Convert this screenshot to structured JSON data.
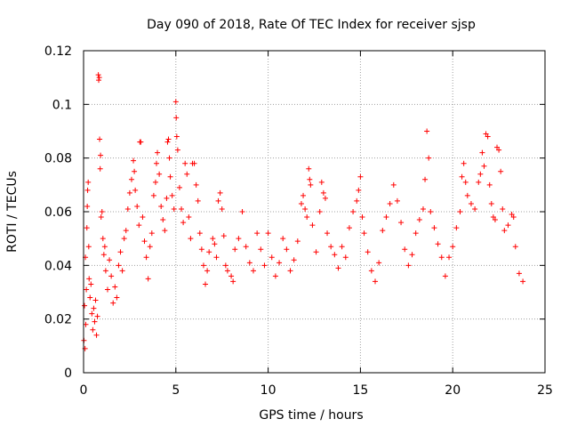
{
  "chart_data": {
    "type": "scatter",
    "title": "Day 090 of 2018, Rate Of TEC Index for receiver sjsp",
    "xlabel": "GPS time / hours",
    "ylabel": "ROTI / TECUs",
    "xlim": [
      0,
      25
    ],
    "ylim": [
      0,
      0.12
    ],
    "x_ticks": [
      0,
      5,
      10,
      15,
      20,
      25
    ],
    "x_tick_labels": [
      "0",
      "5",
      "10",
      "15",
      "20",
      "25"
    ],
    "y_ticks": [
      0,
      0.02,
      0.04,
      0.06,
      0.08,
      0.1,
      0.12
    ],
    "y_tick_labels": [
      "0",
      "0.02",
      "0.04",
      "0.06",
      "0.08",
      "0.1",
      "0.12"
    ],
    "grid": true,
    "marker": "plus",
    "marker_color": "#ff0000",
    "series": [
      {
        "name": "ROTI",
        "points": [
          [
            0.02,
            0.012
          ],
          [
            0.05,
            0.025
          ],
          [
            0.08,
            0.009
          ],
          [
            0.1,
            0.043
          ],
          [
            0.12,
            0.018
          ],
          [
            0.15,
            0.031
          ],
          [
            0.18,
            0.054
          ],
          [
            0.2,
            0.062
          ],
          [
            0.22,
            0.068
          ],
          [
            0.25,
            0.071
          ],
          [
            0.28,
            0.047
          ],
          [
            0.3,
            0.035
          ],
          [
            0.35,
            0.028
          ],
          [
            0.4,
            0.033
          ],
          [
            0.45,
            0.022
          ],
          [
            0.5,
            0.016
          ],
          [
            0.55,
            0.024
          ],
          [
            0.6,
            0.019
          ],
          [
            0.65,
            0.027
          ],
          [
            0.7,
            0.014
          ],
          [
            0.75,
            0.021
          ],
          [
            0.8,
            0.111
          ],
          [
            0.82,
            0.109
          ],
          [
            0.85,
            0.11
          ],
          [
            0.87,
            0.087
          ],
          [
            0.9,
            0.076
          ],
          [
            0.92,
            0.081
          ],
          [
            0.95,
            0.058
          ],
          [
            1.0,
            0.06
          ],
          [
            1.05,
            0.05
          ],
          [
            1.1,
            0.044
          ],
          [
            1.15,
            0.047
          ],
          [
            1.2,
            0.038
          ],
          [
            1.3,
            0.031
          ],
          [
            1.4,
            0.042
          ],
          [
            1.5,
            0.036
          ],
          [
            1.6,
            0.026
          ],
          [
            1.7,
            0.032
          ],
          [
            1.8,
            0.028
          ],
          [
            1.9,
            0.04
          ],
          [
            2.0,
            0.045
          ],
          [
            2.1,
            0.038
          ],
          [
            2.2,
            0.05
          ],
          [
            2.3,
            0.053
          ],
          [
            2.4,
            0.061
          ],
          [
            2.5,
            0.067
          ],
          [
            2.6,
            0.072
          ],
          [
            2.7,
            0.079
          ],
          [
            2.75,
            0.075
          ],
          [
            2.8,
            0.068
          ],
          [
            2.9,
            0.062
          ],
          [
            3.0,
            0.055
          ],
          [
            3.05,
            0.086
          ],
          [
            3.1,
            0.086
          ],
          [
            3.2,
            0.058
          ],
          [
            3.3,
            0.049
          ],
          [
            3.4,
            0.043
          ],
          [
            3.5,
            0.035
          ],
          [
            3.6,
            0.047
          ],
          [
            3.7,
            0.052
          ],
          [
            3.8,
            0.066
          ],
          [
            3.9,
            0.071
          ],
          [
            3.95,
            0.078
          ],
          [
            4.0,
            0.082
          ],
          [
            4.1,
            0.074
          ],
          [
            4.2,
            0.062
          ],
          [
            4.3,
            0.057
          ],
          [
            4.4,
            0.053
          ],
          [
            4.5,
            0.065
          ],
          [
            4.55,
            0.086
          ],
          [
            4.6,
            0.087
          ],
          [
            4.65,
            0.08
          ],
          [
            4.7,
            0.073
          ],
          [
            4.8,
            0.066
          ],
          [
            4.9,
            0.061
          ],
          [
            5.0,
            0.101
          ],
          [
            5.02,
            0.095
          ],
          [
            5.05,
            0.088
          ],
          [
            5.1,
            0.083
          ],
          [
            5.2,
            0.069
          ],
          [
            5.3,
            0.061
          ],
          [
            5.4,
            0.056
          ],
          [
            5.5,
            0.078
          ],
          [
            5.6,
            0.074
          ],
          [
            5.7,
            0.058
          ],
          [
            5.8,
            0.05
          ],
          [
            5.9,
            0.078
          ],
          [
            6.0,
            0.078
          ],
          [
            6.1,
            0.07
          ],
          [
            6.2,
            0.064
          ],
          [
            6.3,
            0.052
          ],
          [
            6.4,
            0.046
          ],
          [
            6.5,
            0.04
          ],
          [
            6.6,
            0.033
          ],
          [
            6.7,
            0.038
          ],
          [
            6.8,
            0.045
          ],
          [
            7.0,
            0.05
          ],
          [
            7.1,
            0.048
          ],
          [
            7.2,
            0.043
          ],
          [
            7.3,
            0.064
          ],
          [
            7.4,
            0.067
          ],
          [
            7.5,
            0.061
          ],
          [
            7.6,
            0.051
          ],
          [
            7.7,
            0.04
          ],
          [
            7.8,
            0.038
          ],
          [
            8.0,
            0.036
          ],
          [
            8.1,
            0.034
          ],
          [
            8.2,
            0.046
          ],
          [
            8.4,
            0.05
          ],
          [
            8.6,
            0.06
          ],
          [
            8.8,
            0.047
          ],
          [
            9.0,
            0.041
          ],
          [
            9.2,
            0.038
          ],
          [
            9.4,
            0.052
          ],
          [
            9.6,
            0.046
          ],
          [
            9.8,
            0.04
          ],
          [
            10.0,
            0.052
          ],
          [
            10.2,
            0.043
          ],
          [
            10.4,
            0.036
          ],
          [
            10.6,
            0.041
          ],
          [
            10.8,
            0.05
          ],
          [
            11.0,
            0.046
          ],
          [
            11.2,
            0.038
          ],
          [
            11.4,
            0.042
          ],
          [
            11.6,
            0.049
          ],
          [
            11.8,
            0.063
          ],
          [
            11.9,
            0.066
          ],
          [
            12.0,
            0.061
          ],
          [
            12.1,
            0.058
          ],
          [
            12.2,
            0.076
          ],
          [
            12.25,
            0.072
          ],
          [
            12.3,
            0.07
          ],
          [
            12.4,
            0.055
          ],
          [
            12.6,
            0.045
          ],
          [
            12.8,
            0.06
          ],
          [
            12.9,
            0.071
          ],
          [
            13.0,
            0.067
          ],
          [
            13.1,
            0.065
          ],
          [
            13.2,
            0.052
          ],
          [
            13.4,
            0.047
          ],
          [
            13.6,
            0.044
          ],
          [
            13.8,
            0.039
          ],
          [
            14.0,
            0.047
          ],
          [
            14.2,
            0.043
          ],
          [
            14.4,
            0.054
          ],
          [
            14.6,
            0.06
          ],
          [
            14.8,
            0.064
          ],
          [
            14.9,
            0.068
          ],
          [
            15.0,
            0.073
          ],
          [
            15.1,
            0.058
          ],
          [
            15.2,
            0.052
          ],
          [
            15.4,
            0.045
          ],
          [
            15.6,
            0.038
          ],
          [
            15.8,
            0.034
          ],
          [
            16.0,
            0.041
          ],
          [
            16.2,
            0.053
          ],
          [
            16.4,
            0.058
          ],
          [
            16.6,
            0.063
          ],
          [
            16.8,
            0.07
          ],
          [
            17.0,
            0.064
          ],
          [
            17.2,
            0.056
          ],
          [
            17.4,
            0.046
          ],
          [
            17.6,
            0.04
          ],
          [
            17.8,
            0.044
          ],
          [
            18.0,
            0.052
          ],
          [
            18.2,
            0.057
          ],
          [
            18.4,
            0.061
          ],
          [
            18.5,
            0.072
          ],
          [
            18.6,
            0.09
          ],
          [
            18.7,
            0.08
          ],
          [
            18.8,
            0.06
          ],
          [
            19.0,
            0.054
          ],
          [
            19.2,
            0.048
          ],
          [
            19.4,
            0.043
          ],
          [
            19.6,
            0.036
          ],
          [
            19.8,
            0.043
          ],
          [
            20.0,
            0.047
          ],
          [
            20.2,
            0.054
          ],
          [
            20.4,
            0.06
          ],
          [
            20.5,
            0.073
          ],
          [
            20.6,
            0.078
          ],
          [
            20.7,
            0.071
          ],
          [
            20.8,
            0.066
          ],
          [
            21.0,
            0.063
          ],
          [
            21.2,
            0.061
          ],
          [
            21.4,
            0.071
          ],
          [
            21.5,
            0.074
          ],
          [
            21.6,
            0.082
          ],
          [
            21.7,
            0.077
          ],
          [
            21.8,
            0.089
          ],
          [
            21.9,
            0.088
          ],
          [
            22.0,
            0.07
          ],
          [
            22.1,
            0.063
          ],
          [
            22.2,
            0.058
          ],
          [
            22.3,
            0.057
          ],
          [
            22.4,
            0.084
          ],
          [
            22.5,
            0.083
          ],
          [
            22.6,
            0.075
          ],
          [
            22.7,
            0.061
          ],
          [
            22.8,
            0.053
          ],
          [
            23.0,
            0.055
          ],
          [
            23.2,
            0.059
          ],
          [
            23.3,
            0.058
          ],
          [
            23.4,
            0.047
          ],
          [
            23.6,
            0.037
          ],
          [
            23.8,
            0.034
          ]
        ]
      }
    ]
  }
}
